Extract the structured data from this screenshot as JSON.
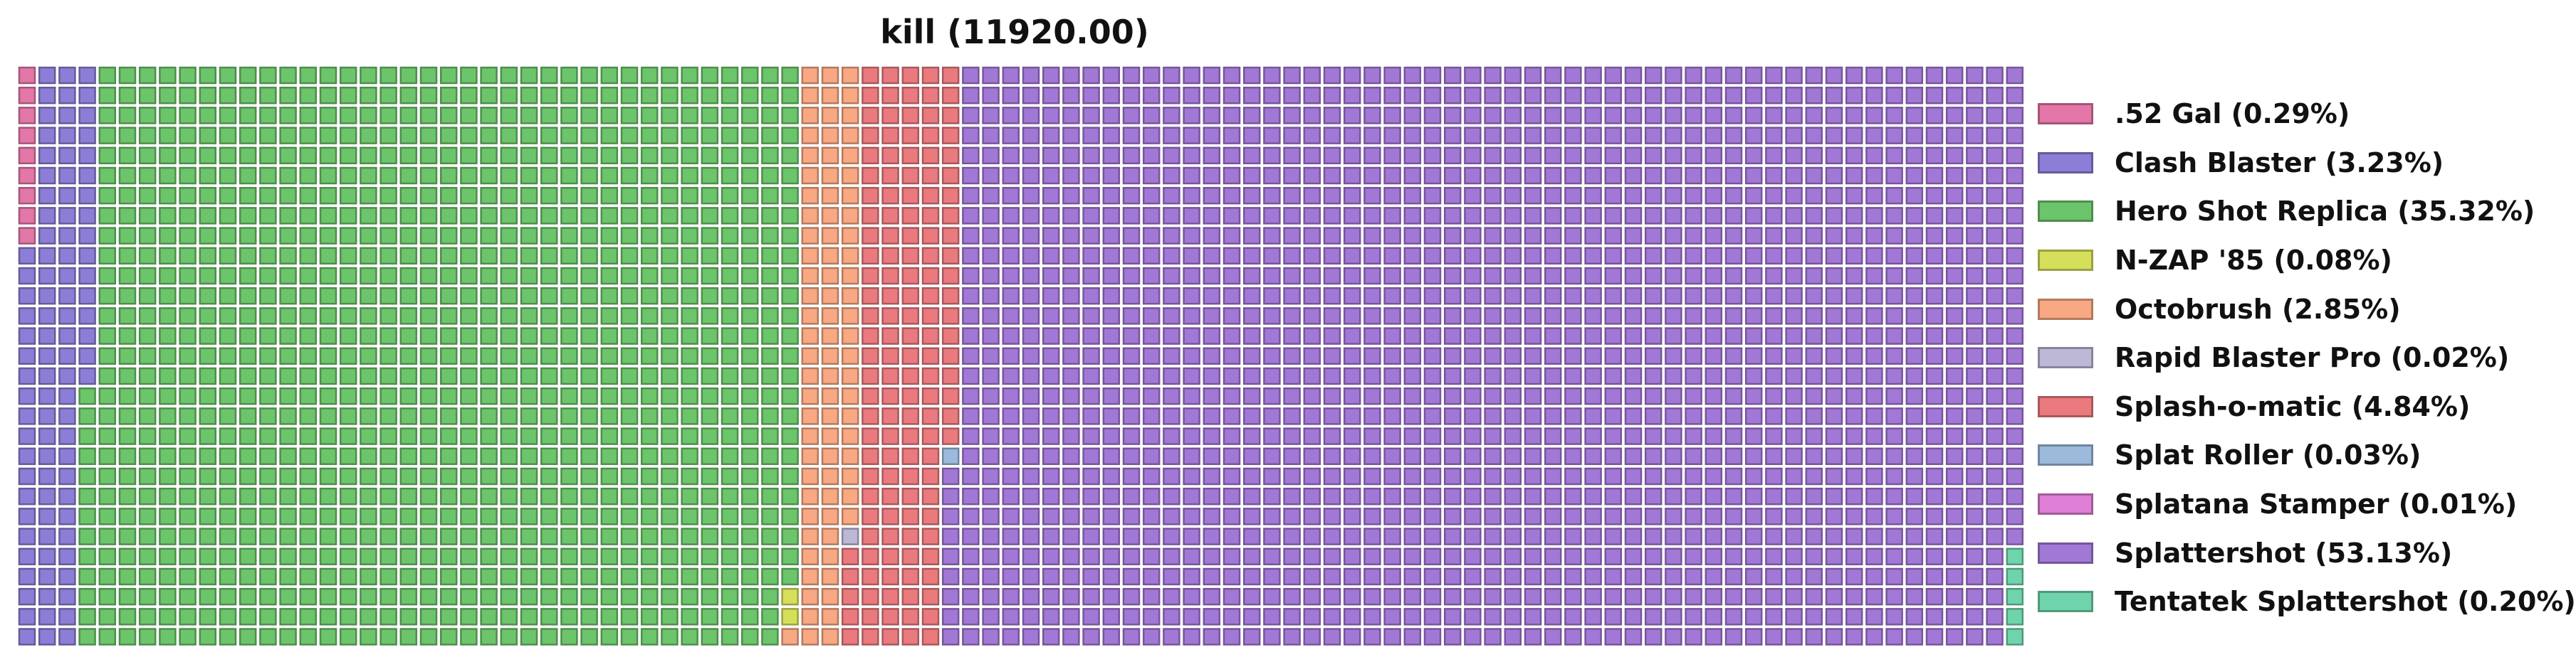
{
  "chart_data": {
    "type": "waffle",
    "title": "kill (11920.00)",
    "total": 11920,
    "grid": {
      "columns": 100,
      "rows": 30
    },
    "legend_position": "right",
    "categories": [
      {
        "name": ".52 Gal",
        "percent": 0.29,
        "label": ".52 Gal (0.29%)",
        "color": "#e377a7"
      },
      {
        "name": "Clash Blaster",
        "percent": 3.23,
        "label": "Clash Blaster (3.23%)",
        "color": "#8c7ed6"
      },
      {
        "name": "Hero Shot Replica",
        "percent": 35.32,
        "label": "Hero Shot Replica (35.32%)",
        "color": "#6cc56a"
      },
      {
        "name": "N-ZAP '85",
        "percent": 0.08,
        "label": "N-ZAP '85 (0.08%)",
        "color": "#d6df5a"
      },
      {
        "name": "Octobrush",
        "percent": 2.85,
        "label": "Octobrush (2.85%)",
        "color": "#f8a883"
      },
      {
        "name": "Rapid Blaster Pro",
        "percent": 0.02,
        "label": "Rapid Blaster Pro (0.02%)",
        "color": "#bdb8d6"
      },
      {
        "name": "Splash-o-matic",
        "percent": 4.84,
        "label": "Splash-o-matic (4.84%)",
        "color": "#ea7a7e"
      },
      {
        "name": "Splat Roller",
        "percent": 0.03,
        "label": "Splat Roller (0.03%)",
        "color": "#9cbadb"
      },
      {
        "name": "Splatana Stamper",
        "percent": 0.01,
        "label": "Splatana Stamper (0.01%)",
        "color": "#e07fd6"
      },
      {
        "name": "Splattershot",
        "percent": 53.13,
        "label": "Splattershot (53.13%)",
        "color": "#a278d6"
      },
      {
        "name": "Tentatek Splattershot",
        "percent": 0.2,
        "label": "Tentatek Splattershot (0.20%)",
        "color": "#6fd4ab"
      }
    ]
  }
}
